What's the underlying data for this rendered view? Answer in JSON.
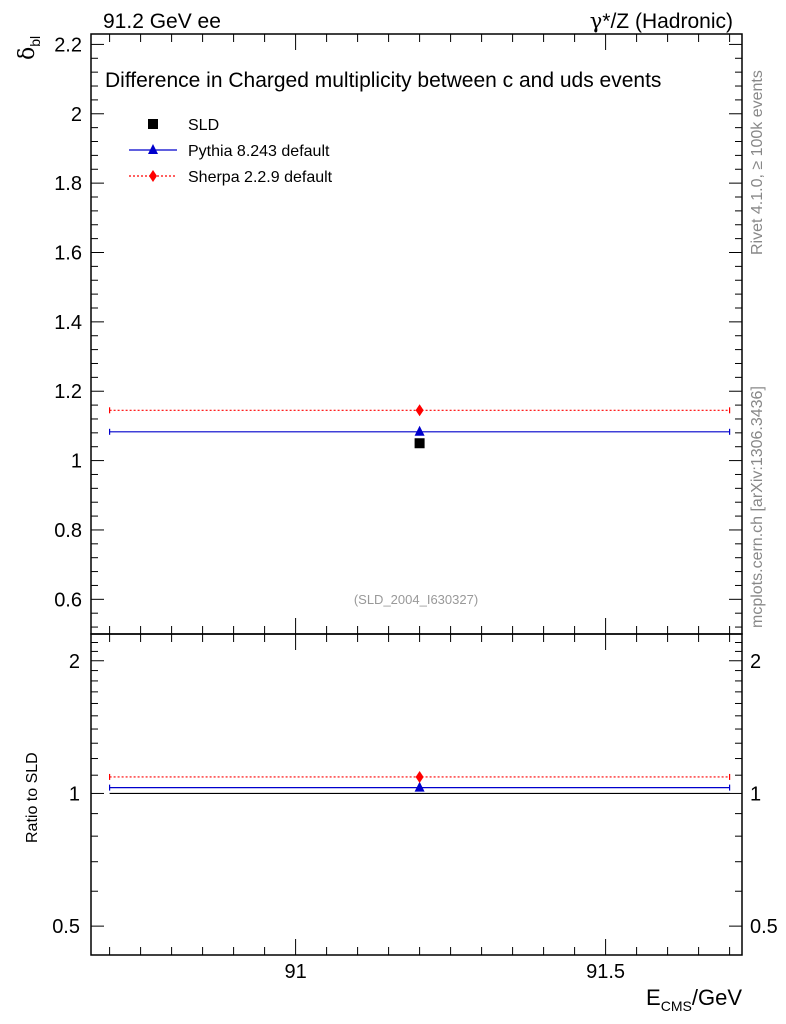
{
  "header": {
    "left_label": "91.2 GeV ee",
    "right_label_sym": "γ",
    "right_label_rest": "*/Z (Hadronic)"
  },
  "side_labels": {
    "rivet": "Rivet 4.1.0, ≥ 100k events",
    "mcplots": "mcplots.cern.ch [arXiv:1306.3436]"
  },
  "chart_data": {
    "type": "scatter",
    "title": "Difference in Charged multiplicity between c and uds events",
    "analysis_id": "(SLD_2004_I630327)",
    "ylabel_main": "δ",
    "ylabel_main_sub": "bl",
    "ylabel_ratio": "Ratio to SLD",
    "xlabel_main": "E",
    "xlabel_sub": "CMS",
    "xlabel_rest": "/GeV",
    "xlim": [
      90.67,
      91.72
    ],
    "ylim_main": [
      0.5,
      2.23
    ],
    "ylim_ratio": [
      0.43,
      2.3
    ],
    "ratio_scale": "log",
    "xticks_major": [
      91,
      91.5
    ],
    "xtick_labels": [
      "91",
      "91.5"
    ],
    "yticks_main": [
      0.6,
      0.8,
      1.0,
      1.2,
      1.4,
      1.6,
      1.8,
      2.0,
      2.2
    ],
    "ytick_labels_main": [
      "0.6",
      "0.8",
      "1",
      "1.2",
      "1.4",
      "1.6",
      "1.8",
      "2",
      "2.2"
    ],
    "yticks_ratio": [
      0.5,
      1,
      2
    ],
    "ytick_labels_ratio": [
      "0.5",
      "1",
      "2"
    ],
    "legend_position": "top-left",
    "series": [
      {
        "name": "SLD",
        "kind": "data",
        "color": "#000000",
        "marker": "square",
        "x": 91.2,
        "xerr": [
          90.7,
          91.7
        ],
        "y": 1.05,
        "ratio": 1.0
      },
      {
        "name": "Pythia 8.243 default",
        "kind": "mc",
        "color": "#0000cc",
        "marker": "triangle",
        "line": "solid",
        "x": 91.2,
        "xerr": [
          90.7,
          91.7
        ],
        "y": 1.083,
        "ratio": 1.031
      },
      {
        "name": "Sherpa 2.2.9 default",
        "kind": "mc",
        "color": "#ff0000",
        "marker": "diamond",
        "line": "dotted",
        "x": 91.2,
        "xerr": [
          90.7,
          91.7
        ],
        "y": 1.145,
        "ratio": 1.09
      }
    ]
  }
}
